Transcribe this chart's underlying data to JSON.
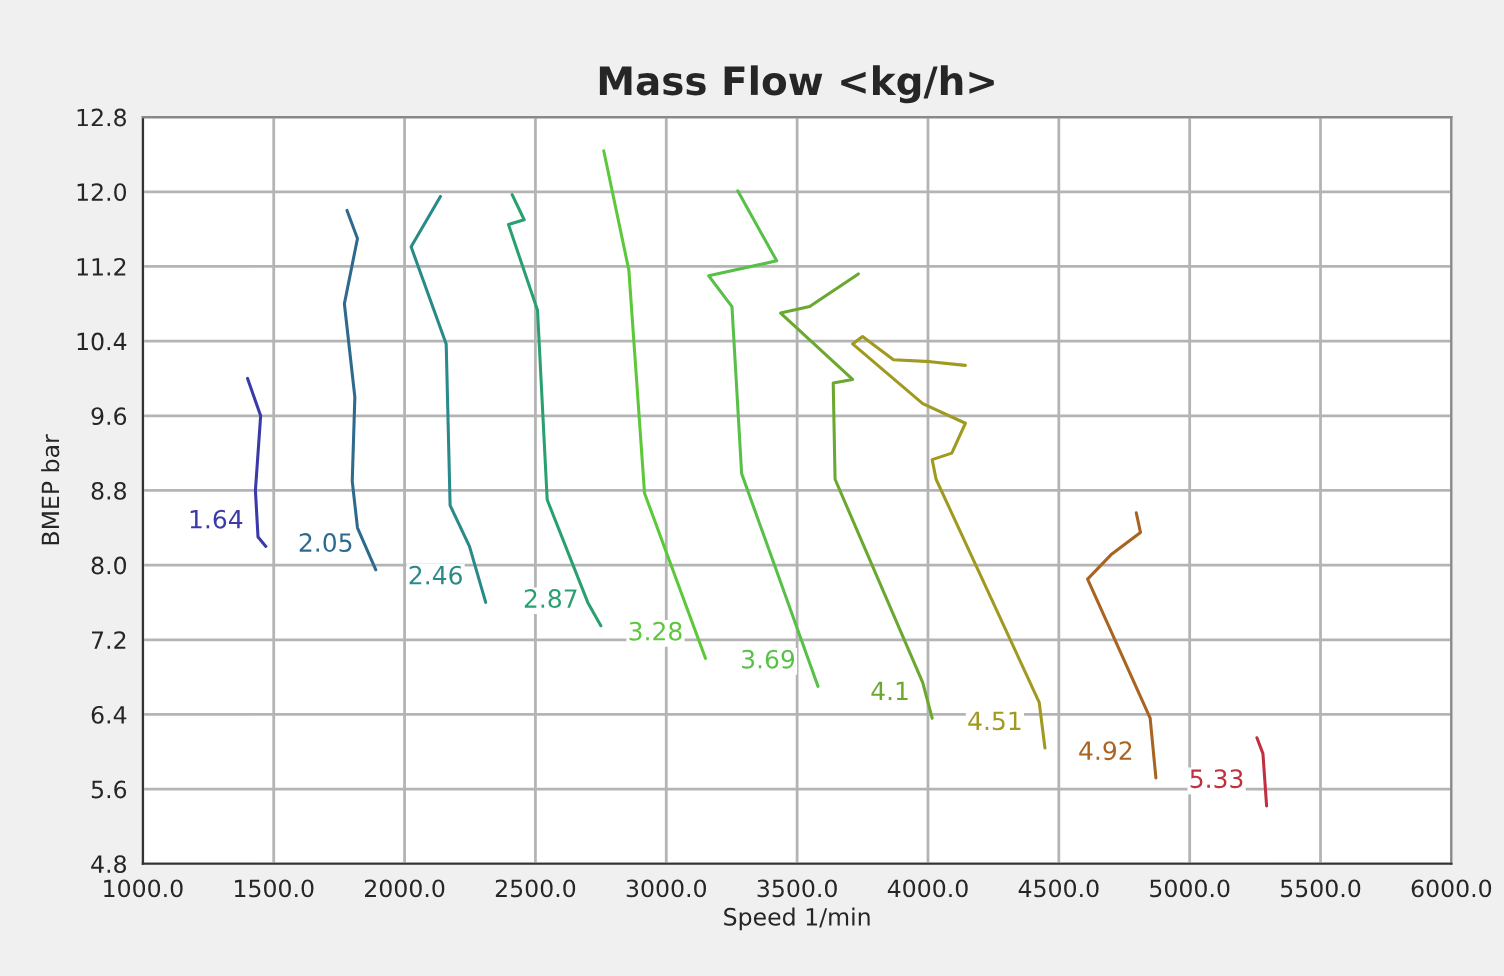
{
  "chart_data": {
    "type": "line",
    "title": "Mass Flow <kg/h>",
    "xlabel": "Speed 1/min",
    "ylabel": "BMEP bar",
    "xlim": [
      1000,
      6000
    ],
    "ylim": [
      4.8,
      12.8
    ],
    "xticks": [
      {
        "value": 1000,
        "label": "1000.0"
      },
      {
        "value": 1500,
        "label": "1500.0"
      },
      {
        "value": 2000,
        "label": "2000.0"
      },
      {
        "value": 2500,
        "label": "2500.0"
      },
      {
        "value": 3000,
        "label": "3000.0"
      },
      {
        "value": 3500,
        "label": "3500.0"
      },
      {
        "value": 4000,
        "label": "4000.0"
      },
      {
        "value": 4500,
        "label": "4500.0"
      },
      {
        "value": 5000,
        "label": "5000.0"
      },
      {
        "value": 5500,
        "label": "5500.0"
      },
      {
        "value": 6000,
        "label": "6000.0"
      }
    ],
    "yticks": [
      {
        "value": 4.8,
        "label": "4.8"
      },
      {
        "value": 5.6,
        "label": "5.6"
      },
      {
        "value": 6.4,
        "label": "6.4"
      },
      {
        "value": 7.2,
        "label": "7.2"
      },
      {
        "value": 8.0,
        "label": "8.0"
      },
      {
        "value": 8.8,
        "label": "8.8"
      },
      {
        "value": 9.6,
        "label": "9.6"
      },
      {
        "value": 10.4,
        "label": "10.4"
      },
      {
        "value": 11.2,
        "label": "11.2"
      },
      {
        "value": 12.0,
        "label": "12.0"
      },
      {
        "value": 12.8,
        "label": "12.8"
      }
    ],
    "grid": true,
    "legend": false,
    "marker": "none",
    "line_style": "solid",
    "series": [
      {
        "name": "1.64",
        "color": "#3a3aa8",
        "x": [
          1400,
          1450,
          1430,
          1440,
          1470
        ],
        "values": [
          10.0,
          9.6,
          8.8,
          8.3,
          8.2
        ]
      },
      {
        "name": "2.05",
        "color": "#2e6a8e",
        "x": [
          1780,
          1820,
          1770,
          1810,
          1800,
          1820,
          1890
        ],
        "values": [
          11.8,
          11.5,
          10.8,
          9.8,
          8.9,
          8.4,
          7.95
        ]
      },
      {
        "name": "2.46",
        "color": "#2a8a8a",
        "x": [
          2137,
          2025,
          2159,
          2174,
          2248,
          2310
        ],
        "values": [
          11.95,
          11.41,
          10.37,
          8.64,
          8.2,
          7.6
        ]
      },
      {
        "name": "2.87",
        "color": "#2aa070",
        "x": [
          2411,
          2457,
          2397,
          2508,
          2545,
          2700,
          2750
        ],
        "values": [
          11.97,
          11.7,
          11.65,
          10.73,
          8.7,
          7.6,
          7.35
        ]
      },
      {
        "name": "3.28",
        "color": "#5cc83a",
        "x": [
          2761,
          2857,
          2917,
          3150
        ],
        "values": [
          12.44,
          11.16,
          8.77,
          7.0
        ]
      },
      {
        "name": "3.69",
        "color": "#58c048",
        "x": [
          3273,
          3422,
          3162,
          3251,
          3288,
          3580
        ],
        "values": [
          12.01,
          11.26,
          11.1,
          10.77,
          8.98,
          6.7
        ]
      },
      {
        "name": "4.1",
        "color": "#6aa830",
        "x": [
          3734,
          3548,
          3437,
          3712,
          3638,
          3645,
          3980,
          4016
        ],
        "values": [
          11.12,
          10.77,
          10.7,
          9.99,
          9.95,
          8.92,
          6.74,
          6.36
        ]
      },
      {
        "name": "4.51",
        "color": "#a09a20",
        "x": [
          4143,
          4009,
          3868,
          3750,
          3712,
          3980,
          4143,
          4091,
          4016,
          4031,
          4425,
          4447
        ],
        "values": [
          10.14,
          10.18,
          10.2,
          10.45,
          10.37,
          9.73,
          9.52,
          9.2,
          9.13,
          8.92,
          6.53,
          6.04
        ]
      },
      {
        "name": "4.92",
        "color": "#a86420",
        "x": [
          4796,
          4812,
          4699,
          4610,
          4849,
          4871
        ],
        "values": [
          8.56,
          8.35,
          8.11,
          7.85,
          6.36,
          5.72
        ]
      },
      {
        "name": "5.33",
        "color": "#c03040",
        "x": [
          5257,
          5280,
          5294
        ],
        "values": [
          6.15,
          5.98,
          5.42
        ]
      }
    ]
  }
}
